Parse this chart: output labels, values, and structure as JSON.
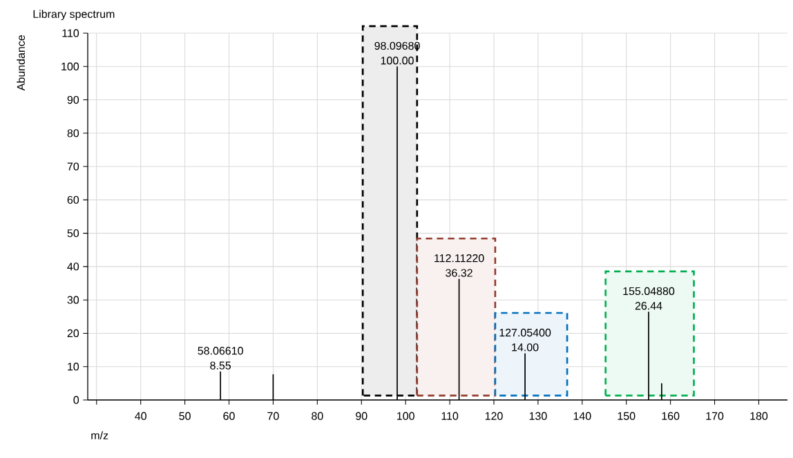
{
  "chart_data": {
    "type": "bar",
    "title": "Library spectrum",
    "xlabel": "m/z",
    "ylabel": "Abundance",
    "x": [
      58.0661,
      70,
      98.0968,
      112.1122,
      127.054,
      155.0488,
      158
    ],
    "values": [
      8.55,
      7.7,
      100.0,
      36.32,
      14.0,
      26.44,
      5
    ],
    "color": "#000000",
    "value_labels": [
      "8.55",
      null,
      "100.00",
      "36.32",
      "14.00",
      "26.44",
      null
    ],
    "annotations": [
      {
        "text": "58.06610",
        "x": 58.0661,
        "y": 8.55
      },
      {
        "text": "98.09680",
        "x": 98.0968,
        "y": 100.0
      },
      {
        "text": "112.11220",
        "x": 112.1122,
        "y": 36.32
      },
      {
        "text": "127.05400",
        "x": 127.054,
        "y": 14.0
      },
      {
        "text": "155.04880",
        "x": 155.0488,
        "y": 26.44
      }
    ],
    "bands": [
      {
        "axis": "x",
        "from": 90.3,
        "to": 102.6,
        "color": "#000000"
      },
      {
        "axis": "x",
        "from": 102.6,
        "to": 120.3,
        "color": "#943a2c"
      },
      {
        "axis": "x",
        "from": 120.3,
        "to": 136.6,
        "color": "#0070c0"
      },
      {
        "axis": "x",
        "from": 145.3,
        "to": 165.3,
        "color": "#00b050"
      }
    ],
    "xlim": [
      28,
      186.5
    ],
    "xticks": [
      {
        "value": 30,
        "label": null
      },
      40,
      50,
      60,
      70,
      80,
      90,
      100,
      110,
      120,
      130,
      140,
      150,
      160,
      170,
      180
    ],
    "ylim": [
      0,
      110
    ],
    "yticks": [
      0,
      10,
      20,
      30,
      40,
      50,
      60,
      70,
      80,
      90,
      100,
      110
    ],
    "grid": true
  }
}
